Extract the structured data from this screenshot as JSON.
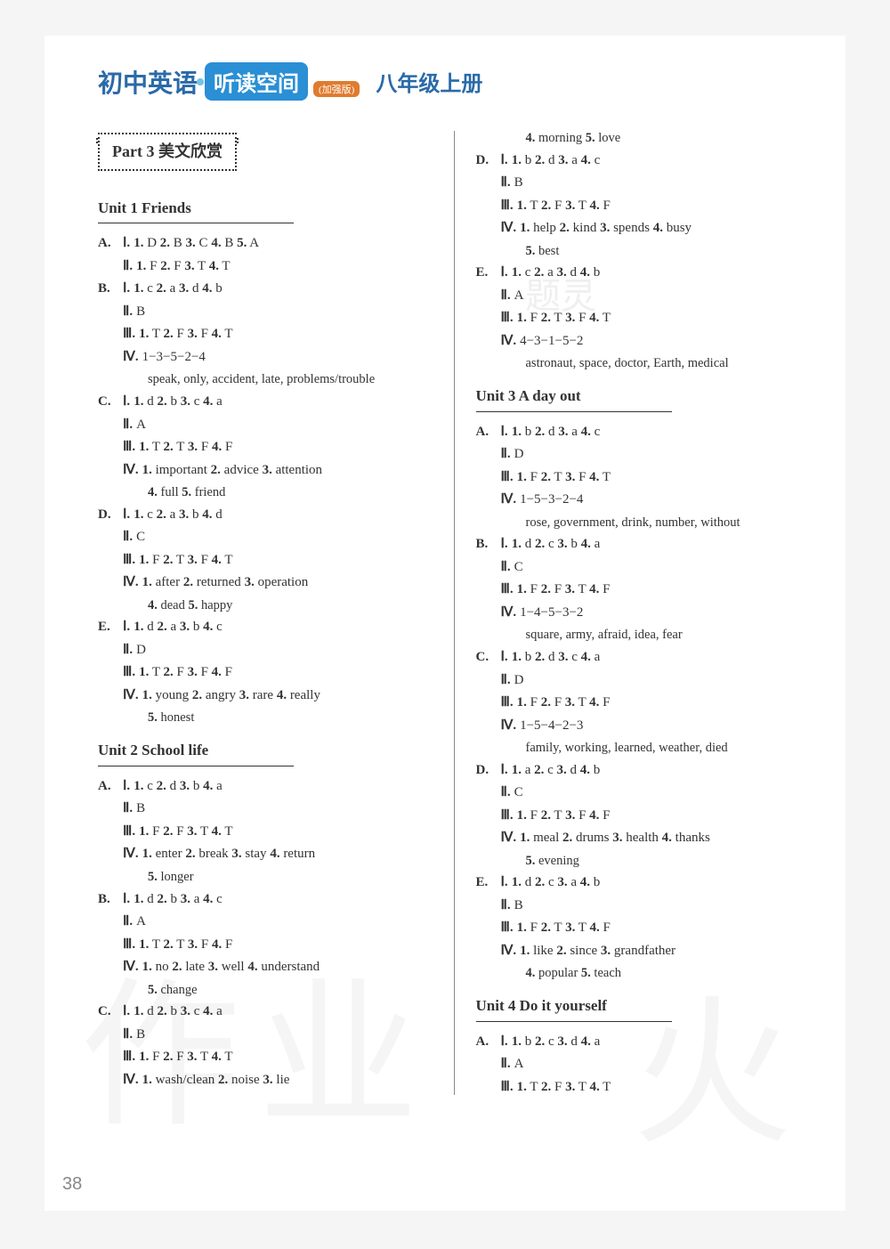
{
  "header": {
    "left_cn": "初中英语",
    "badge": "听读空间",
    "sub_badge": "(加强版)",
    "right_cn": "八年级上册"
  },
  "part_box": "Part 3  美文欣赏",
  "page_number": "38",
  "left_col": {
    "unit1": {
      "title": "Unit 1  Friends",
      "A": {
        "I": "1. D   2. B   3. C   4. B   5. A",
        "II": "1. F   2. F   3. T   4. T"
      },
      "B": {
        "I": "1. c   2. a   3. d   4. b",
        "II": "B",
        "III": "1. T   2. F   3. F   4. T",
        "IV": "1−3−5−2−4",
        "words": "speak, only, accident, late, problems/trouble"
      },
      "C": {
        "I": "1. d   2. b   3. c   4. a",
        "II": "A",
        "III": "1. T   2. T   3. F   4. F",
        "IV": "1. important  2. advice  3. attention",
        "IV2": "4. full  5. friend"
      },
      "D": {
        "I": "1. c   2. a   3. b   4. d",
        "II": "C",
        "III": "1. F   2. T   3. F   4. T",
        "IV": "1. after  2. returned  3. operation",
        "IV2": "4. dead  5. happy"
      },
      "E": {
        "I": "1. d   2. a   3. b   4. c",
        "II": "D",
        "III": "1. T   2. F   3. F   4. F",
        "IV": "1. young  2. angry  3. rare  4. really",
        "IV2": "5. honest"
      }
    },
    "unit2": {
      "title": "Unit 2  School life",
      "A": {
        "I": "1. c   2. d   3. b   4. a",
        "II": "B",
        "III": "1. F   2. F   3. T   4. T",
        "IV": "1. enter  2. break  3. stay  4. return",
        "IV2": "5. longer"
      },
      "B": {
        "I": "1. d   2. b   3. a   4. c",
        "II": "A",
        "III": "1. T   2. T   3. F   4. F",
        "IV": "1. no  2. late  3. well  4. understand",
        "IV2": "5. change"
      },
      "C": {
        "I": "1. d   2. b   3. c   4. a",
        "II": "B",
        "III": "1. F   2. F   3. T   4. T",
        "IV": "1. wash/clean  2. noise  3. lie"
      }
    }
  },
  "right_col": {
    "cont": {
      "extra1": "4. morning  5. love",
      "D": {
        "I": "1. b   2. d   3. a   4. c",
        "II": "B",
        "III": "1. T   2. F   3. T   4. F",
        "IV": "1. help  2. kind  3. spends  4. busy",
        "IV2": "5. best"
      },
      "E": {
        "I": "1. c   2. a   3. d   4. b",
        "II": "A",
        "III": "1. F   2. T   3. F   4. T",
        "IV": "4−3−1−5−2",
        "words": "astronaut, space, doctor, Earth, medical"
      }
    },
    "unit3": {
      "title": "Unit 3  A day out",
      "A": {
        "I": "1. b   2. d   3. a   4. c",
        "II": "D",
        "III": "1. F   2. T   3. F   4. T",
        "IV": "1−5−3−2−4",
        "words": "rose, government, drink, number, without"
      },
      "B": {
        "I": "1. d   2. c   3. b   4. a",
        "II": "C",
        "III": "1. F   2. F   3. T   4. F",
        "IV": "1−4−5−3−2",
        "words": "square, army, afraid, idea, fear"
      },
      "C": {
        "I": "1. b   2. d   3. c   4. a",
        "II": "D",
        "III": "1. F   2. F   3. T   4. F",
        "IV": "1−5−4−2−3",
        "words": "family, working, learned, weather, died"
      },
      "D": {
        "I": "1. a   2. c   3. d   4. b",
        "II": "C",
        "III": "1. F   2. T   3. F   4. F",
        "IV": "1. meal  2. drums  3. health  4. thanks",
        "IV2": "5. evening"
      },
      "E": {
        "I": "1. d   2. c   3. a   4. b",
        "II": "B",
        "III": "1. F   2. T   3. T   4. F",
        "IV": "1. like  2. since  3. grandfather",
        "IV2": "4. popular  5. teach"
      }
    },
    "unit4": {
      "title": "Unit 4  Do it yourself",
      "A": {
        "I": "1. b   2. c   3. d   4. a",
        "II": "A",
        "III": "1. T   2. F   3. T   4. T"
      }
    }
  }
}
